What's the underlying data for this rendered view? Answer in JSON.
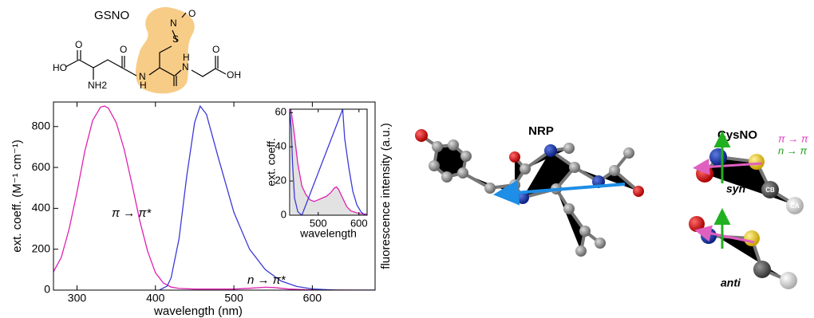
{
  "chart_data": [
    {
      "type": "line",
      "xlabel": "wavelength (nm)",
      "ylabel": "ext. coeff. (M⁻¹ cm⁻¹)",
      "y2label": "fluorescence intensity (a.u.)",
      "xlim": [
        270,
        680
      ],
      "ylim": [
        0,
        920
      ],
      "xticks": [
        300,
        400,
        500,
        600
      ],
      "yticks": [
        0,
        200,
        400,
        600,
        800
      ],
      "annotations": [
        "π → π*",
        "n → π*"
      ],
      "series": [
        {
          "color": "#e020b0",
          "x": [
            270,
            280,
            290,
            300,
            310,
            320,
            330,
            335,
            340,
            350,
            360,
            370,
            380,
            390,
            400,
            410,
            420,
            430,
            450,
            480,
            500,
            520,
            540,
            550,
            570,
            600,
            650,
            680
          ],
          "values": [
            90,
            160,
            300,
            480,
            680,
            830,
            895,
            900,
            890,
            820,
            690,
            520,
            340,
            190,
            85,
            35,
            15,
            8,
            5,
            5,
            5,
            9,
            14,
            13,
            5,
            1,
            0,
            0
          ]
        },
        {
          "color": "#3a3ad8",
          "x": [
            405,
            415,
            420,
            430,
            440,
            450,
            457,
            465,
            480,
            500,
            520,
            540,
            560,
            580,
            600,
            630,
            680
          ],
          "values": [
            0,
            20,
            60,
            250,
            560,
            820,
            900,
            860,
            650,
            380,
            200,
            100,
            45,
            18,
            6,
            0,
            0
          ]
        }
      ]
    },
    {
      "type": "line",
      "xlabel": "wavelength",
      "ylabel": "ext. coeff.",
      "xlim": [
        430,
        620
      ],
      "ylim": [
        0,
        62
      ],
      "xticks": [
        500,
        600
      ],
      "yticks": [
        0,
        20,
        40,
        60
      ],
      "series": [
        {
          "color": "#e020b0",
          "fill": "#e2e2e2",
          "x": [
            433,
            440,
            450,
            460,
            470,
            480,
            490,
            500,
            510,
            520,
            530,
            540,
            545,
            550,
            560,
            570,
            580,
            600,
            620
          ],
          "values": [
            62,
            50,
            30,
            17,
            12,
            9,
            8,
            9,
            10,
            11,
            13,
            16,
            16.5,
            15,
            10,
            5,
            2.5,
            1,
            0.5
          ]
        },
        {
          "color": "#3a3ad8",
          "x": [
            430,
            434,
            437,
            442,
            450,
            460,
            560,
            565,
            575,
            585,
            595,
            605,
            615,
            620
          ],
          "values": [
            62,
            50,
            30,
            10,
            2,
            0,
            62,
            45,
            28,
            14,
            6,
            2,
            0,
            0
          ]
        }
      ]
    }
  ],
  "gsno": {
    "title": "GSNO",
    "labels": [
      "N",
      "O",
      "S",
      "O",
      "HO",
      "NH2",
      "N",
      "H",
      "O",
      "H",
      "N",
      "O",
      "OH"
    ]
  },
  "nrp": {
    "title": "NRP"
  },
  "cysno": {
    "title": "CysNO",
    "conformers": [
      "syn",
      "anti"
    ],
    "atoms": [
      "CB",
      "CA"
    ],
    "legend": [
      {
        "text": "π → π",
        "color": "#e040c0"
      },
      {
        "text": "n → π",
        "color": "#20a020"
      }
    ]
  }
}
